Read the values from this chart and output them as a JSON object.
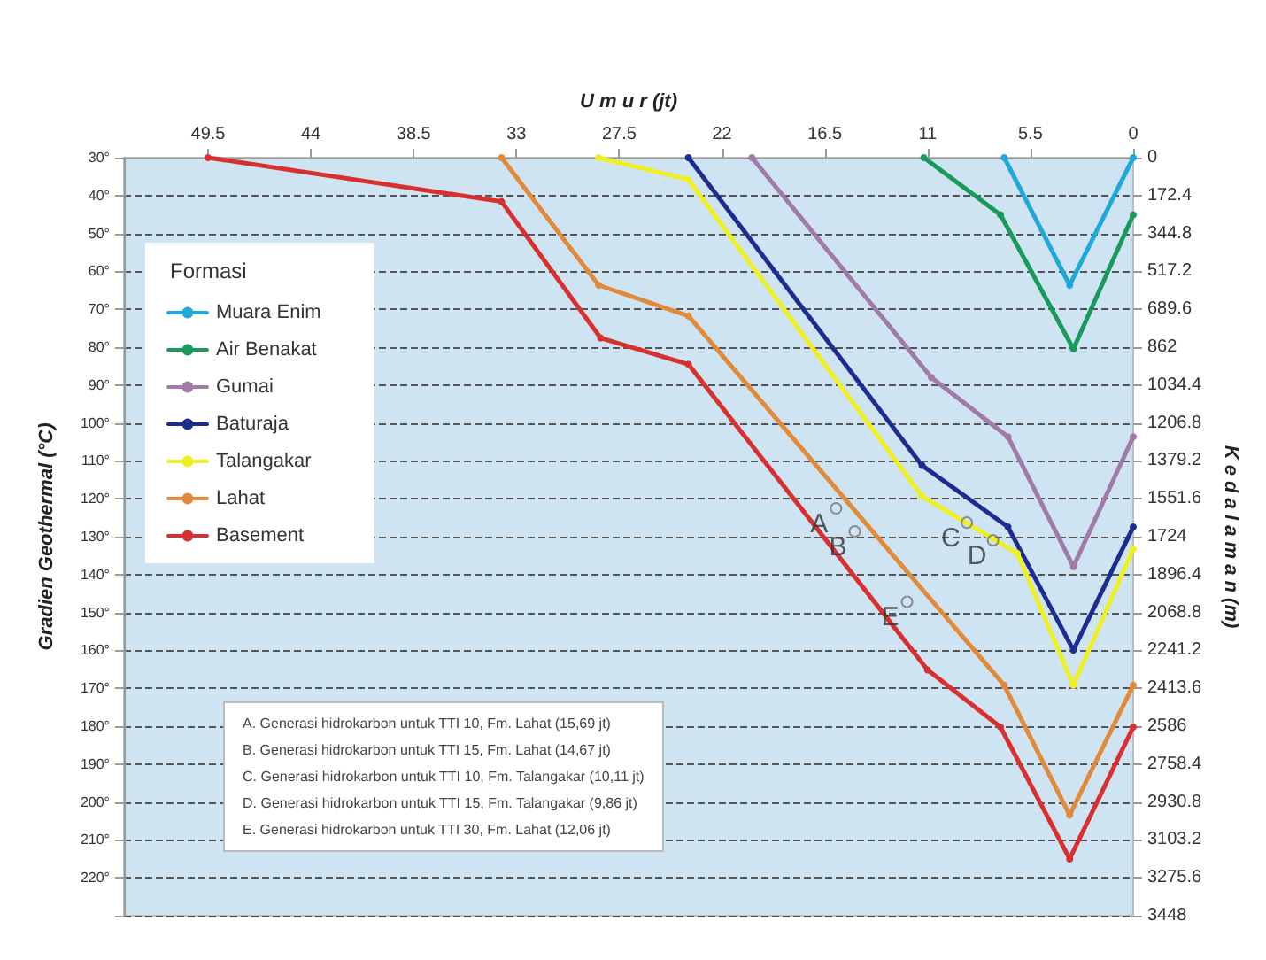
{
  "chart_data": {
    "type": "line",
    "xlabel": "U m u r (jt)",
    "ylabel": "K e d a l a m a n (m)",
    "y2label": "Gradien Geothermal (°C)",
    "legend_title": "Formasi",
    "xlim": [
      54,
      0
    ],
    "xticks": [
      49.5,
      44,
      38.5,
      33,
      27.5,
      22,
      16.5,
      11,
      5.5,
      0
    ],
    "ylim": [
      3448,
      0
    ],
    "yticks": [
      0,
      172.4,
      344.8,
      517.2,
      689.6,
      862,
      1034.4,
      1206.8,
      1379.2,
      1551.6,
      1724,
      1896.4,
      2068.8,
      2241.2,
      2413.6,
      2586,
      2758.4,
      2930.8,
      3103.2,
      3275.6,
      3448
    ],
    "y2lim": [
      230,
      30
    ],
    "y2ticks": [
      {
        "value": 30,
        "label": "30°"
      },
      {
        "value": 40,
        "label": "40°"
      },
      {
        "value": 50,
        "label": "50°"
      },
      {
        "value": 60,
        "label": "60°"
      },
      {
        "value": 70,
        "label": "70°"
      },
      {
        "value": 80,
        "label": "80°"
      },
      {
        "value": 90,
        "label": "90°"
      },
      {
        "value": 100,
        "label": "100°"
      },
      {
        "value": 110,
        "label": "110°"
      },
      {
        "value": 120,
        "label": "120°"
      },
      {
        "value": 130,
        "label": "130°"
      },
      {
        "value": 140,
        "label": "140°"
      },
      {
        "value": 150,
        "label": "150°"
      },
      {
        "value": 160,
        "label": "160°"
      },
      {
        "value": 170,
        "label": "170°"
      },
      {
        "value": 180,
        "label": "180°"
      },
      {
        "value": 190,
        "label": "190°"
      },
      {
        "value": 200,
        "label": "200°"
      },
      {
        "value": 210,
        "label": "210°"
      },
      {
        "value": 220,
        "label": "220°"
      },
      {
        "value": 230,
        "label": null
      }
    ],
    "grid": "y",
    "legend": "top left",
    "marker": "circle",
    "line_style": "solid",
    "series": [
      {
        "name": "Muara Enim",
        "color": "#1fa8d8",
        "x": [
          6.9,
          3.4,
          0
        ],
        "values": [
          0,
          580,
          0
        ]
      },
      {
        "name": "Air Benakat",
        "color": "#1a9a5a",
        "x": [
          11.2,
          7.1,
          3.2,
          0
        ],
        "values": [
          0,
          260,
          870,
          260
        ]
      },
      {
        "name": "Gumai",
        "color": "#a07aa8",
        "x": [
          20.4,
          10.8,
          6.7,
          3.2,
          0
        ],
        "values": [
          0,
          1000,
          1270,
          1860,
          1270
        ]
      },
      {
        "name": "Baturaja",
        "color": "#1c2d8f",
        "x": [
          23.8,
          11.3,
          6.7,
          3.2,
          0
        ],
        "values": [
          0,
          1400,
          1680,
          2240,
          1680
        ]
      },
      {
        "name": "Talangakar",
        "color": "#f0f020",
        "x": [
          28.6,
          23.8,
          11.3,
          6.2,
          3.2,
          0
        ],
        "values": [
          0,
          100,
          1540,
          1800,
          2400,
          1780
        ]
      },
      {
        "name": "Lahat",
        "color": "#e08a3a",
        "x": [
          33.8,
          28.6,
          23.8,
          6.9,
          3.4,
          0
        ],
        "values": [
          0,
          580,
          720,
          2400,
          2990,
          2400
        ]
      },
      {
        "name": "Basement",
        "color": "#d8302f",
        "x": [
          49.5,
          33.8,
          28.5,
          23.8,
          11,
          7.1,
          3.4,
          0
        ],
        "values": [
          0,
          200,
          820,
          940,
          2330,
          2590,
          3190,
          2590
        ]
      }
    ],
    "annotations": [
      {
        "text": "A",
        "x": 15.9,
        "y": 1595
      },
      {
        "text": "B",
        "x": 14.9,
        "y": 1700
      },
      {
        "text": "C",
        "x": 8.9,
        "y": 1660
      },
      {
        "text": "D",
        "x": 7.5,
        "y": 1740
      },
      {
        "text": "E",
        "x": 12.1,
        "y": 2020
      },
      "A. Generasi hidrokarbon untuk TTI 10, Fm. Lahat (15,69 jt)",
      "B. Generasi hidrokarbon untuk TTI 15, Fm. Lahat (14,67 jt)",
      "C. Generasi hidrokarbon untuk TTI 10, Fm. Talangakar (10,11 jt)",
      "D. Generasi hidrokarbon untuk TTI 15, Fm. Talangakar (9,86 jt)",
      "E. Generasi hidrokarbon untuk TTI 30, Fm. Lahat (12,06 jt)"
    ]
  }
}
